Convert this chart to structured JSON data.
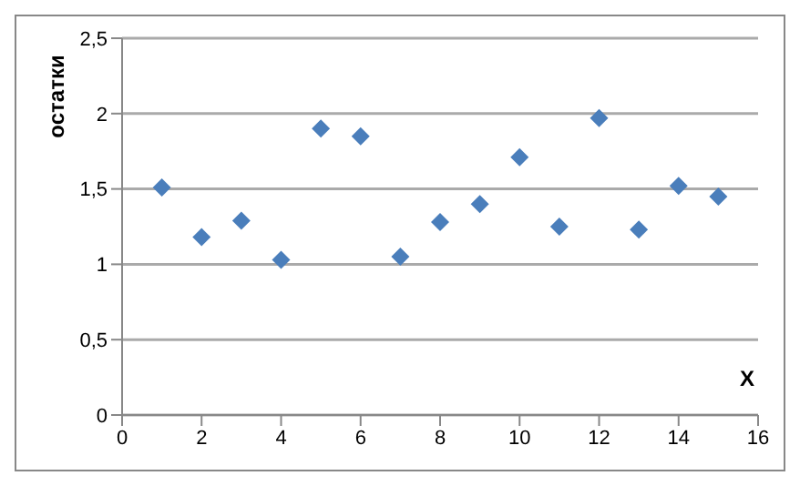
{
  "chart_data": {
    "type": "scatter",
    "ylabel": "остатки",
    "xlabel": "X",
    "x": [
      1,
      2,
      3,
      4,
      5,
      6,
      7,
      8,
      9,
      10,
      11,
      12,
      13,
      14,
      15
    ],
    "values": [
      1.51,
      1.18,
      1.29,
      1.03,
      1.9,
      1.85,
      1.05,
      1.28,
      1.4,
      1.71,
      1.25,
      1.97,
      1.23,
      1.52,
      1.45
    ],
    "color": "#4a7ebb",
    "marker": "diamond",
    "grid": "y",
    "legend": false,
    "xlim": [
      0,
      16
    ],
    "xticks": [
      0,
      2,
      4,
      6,
      8,
      10,
      12,
      14,
      16
    ],
    "ylim": [
      0,
      2.5
    ],
    "yticks": [
      0,
      {
        "value": 0.5,
        "label": "0,5"
      },
      1,
      {
        "value": 1.5,
        "label": "1,5"
      },
      2,
      {
        "value": 2.5,
        "label": "2,5"
      }
    ]
  }
}
